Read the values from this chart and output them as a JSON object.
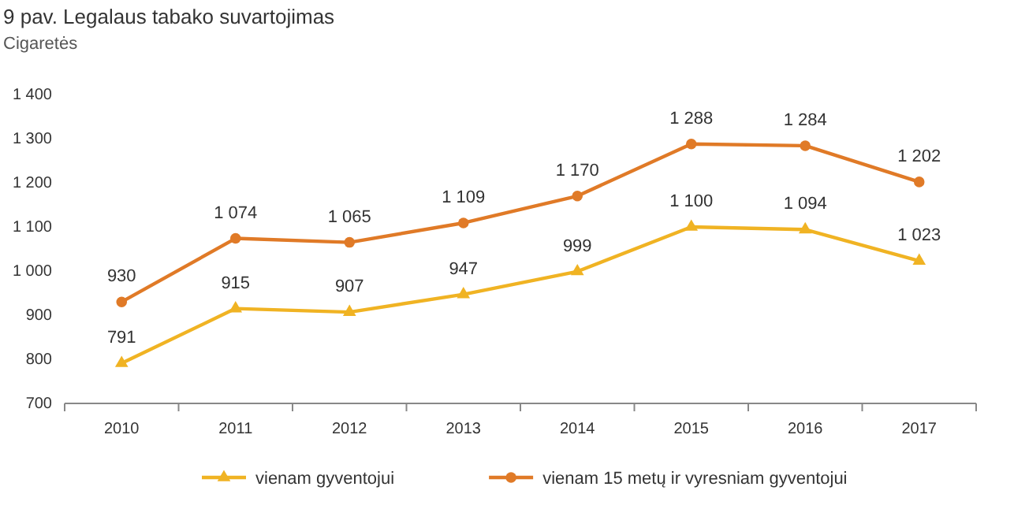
{
  "chart_data": {
    "type": "line",
    "title": "9 pav. Legalaus tabako suvartojimas",
    "ylabel": "Cigaretės",
    "categories": [
      "2010",
      "2011",
      "2012",
      "2013",
      "2014",
      "2015",
      "2016",
      "2017"
    ],
    "series": [
      {
        "name": "vienam gyventojui",
        "color": "#f0b323",
        "marker": "triangle",
        "values": [
          791,
          915,
          907,
          947,
          999,
          1100,
          1094,
          1023
        ],
        "value_labels": [
          "791",
          "915",
          "907",
          "947",
          "999",
          "1 100",
          "1 094",
          "1 023"
        ]
      },
      {
        "name": "vienam 15 metų ir vyresniam gyventojui",
        "color": "#e07a27",
        "marker": "circle",
        "values": [
          930,
          1074,
          1065,
          1109,
          1170,
          1288,
          1284,
          1202
        ],
        "value_labels": [
          "930",
          "1 074",
          "1 065",
          "1 109",
          "1 170",
          "1 288",
          "1 284",
          "1 202"
        ]
      }
    ],
    "ylim": [
      700,
      1400
    ],
    "yticks": [
      {
        "value": 700,
        "label": "700"
      },
      {
        "value": 800,
        "label": "800"
      },
      {
        "value": 900,
        "label": "900"
      },
      {
        "value": 1000,
        "label": "1 000"
      },
      {
        "value": 1100,
        "label": "1 100"
      },
      {
        "value": 1200,
        "label": "1 200"
      },
      {
        "value": 1300,
        "label": "1 300"
      },
      {
        "value": 1400,
        "label": "1 400"
      }
    ],
    "grid": false,
    "legend": "bottom",
    "line_style": "solid"
  }
}
